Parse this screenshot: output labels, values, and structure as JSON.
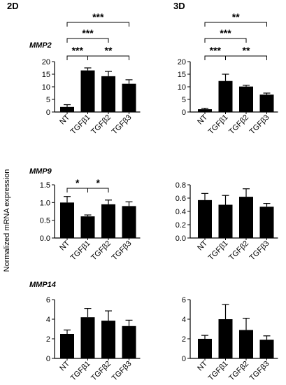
{
  "figure": {
    "y_axis_label": "Normalized mRNA expression",
    "column_headers": [
      "2D",
      "3D"
    ]
  },
  "chart_data": [
    {
      "type": "bar",
      "gene": "MMP2",
      "condition": "2D",
      "categories": [
        "NT",
        "TGFβ1",
        "TGFβ2",
        "TGFβ3"
      ],
      "values": [
        2.0,
        16.5,
        14.2,
        11.2
      ],
      "errors": [
        0.9,
        1.0,
        1.9,
        1.6
      ],
      "ylim": [
        0,
        20
      ],
      "yticks": [
        "0",
        "5",
        "10",
        "15",
        "20"
      ],
      "significance": [
        {
          "from": 0,
          "to": 1,
          "label": "***"
        },
        {
          "from": 1,
          "to": 3,
          "label": "**"
        },
        {
          "from": 0,
          "to": 2,
          "label": "***"
        },
        {
          "from": 0,
          "to": 3,
          "label": "***"
        }
      ]
    },
    {
      "type": "bar",
      "gene": "",
      "condition": "3D",
      "categories": [
        "NT",
        "TGFβ1",
        "TGFβ2",
        "TGFβ3"
      ],
      "values": [
        1.1,
        12.3,
        10.1,
        6.9
      ],
      "errors": [
        0.4,
        2.7,
        0.5,
        0.6
      ],
      "ylim": [
        0,
        20
      ],
      "yticks": [
        "0",
        "5",
        "10",
        "15",
        "20"
      ],
      "significance": [
        {
          "from": 0,
          "to": 1,
          "label": "***"
        },
        {
          "from": 1,
          "to": 3,
          "label": "**"
        },
        {
          "from": 0,
          "to": 2,
          "label": "***"
        },
        {
          "from": 0,
          "to": 3,
          "label": "**"
        }
      ]
    },
    {
      "type": "bar",
      "gene": "MMP9",
      "condition": "2D",
      "categories": [
        "NT",
        "TGFβ1",
        "TGFβ2",
        "TGFβ3"
      ],
      "values": [
        1.0,
        0.61,
        0.95,
        0.9
      ],
      "errors": [
        0.17,
        0.04,
        0.12,
        0.12
      ],
      "ylim": [
        0,
        1.5
      ],
      "yticks": [
        "0.0",
        "0.5",
        "1.0",
        "1.5"
      ],
      "significance": [
        {
          "from": 0,
          "to": 1,
          "label": "*"
        },
        {
          "from": 1,
          "to": 2,
          "label": "*"
        }
      ]
    },
    {
      "type": "bar",
      "gene": "",
      "condition": "3D",
      "categories": [
        "NT",
        "TGFβ1",
        "TGFβ2",
        "TGFβ3"
      ],
      "values": [
        0.57,
        0.5,
        0.62,
        0.47
      ],
      "errors": [
        0.1,
        0.14,
        0.12,
        0.05
      ],
      "ylim": [
        0,
        0.8
      ],
      "yticks": [
        "0.0",
        "0.2",
        "0.4",
        "0.6",
        "0.8"
      ],
      "significance": []
    },
    {
      "type": "bar",
      "gene": "MMP14",
      "condition": "2D",
      "categories": [
        "NT",
        "TGFβ1",
        "TGFβ2",
        "TGFβ3"
      ],
      "values": [
        2.5,
        4.2,
        3.85,
        3.3
      ],
      "errors": [
        0.4,
        0.9,
        1.0,
        0.6
      ],
      "ylim": [
        0,
        6
      ],
      "yticks": [
        "0",
        "2",
        "4",
        "6"
      ],
      "significance": []
    },
    {
      "type": "bar",
      "gene": "",
      "condition": "3D",
      "categories": [
        "NT",
        "TGFβ1",
        "TGFβ2",
        "TGFβ3"
      ],
      "values": [
        2.0,
        4.0,
        2.9,
        1.9
      ],
      "errors": [
        0.35,
        1.5,
        1.2,
        0.4
      ],
      "ylim": [
        0,
        6
      ],
      "yticks": [
        "0",
        "2",
        "4",
        "6"
      ],
      "significance": []
    }
  ]
}
